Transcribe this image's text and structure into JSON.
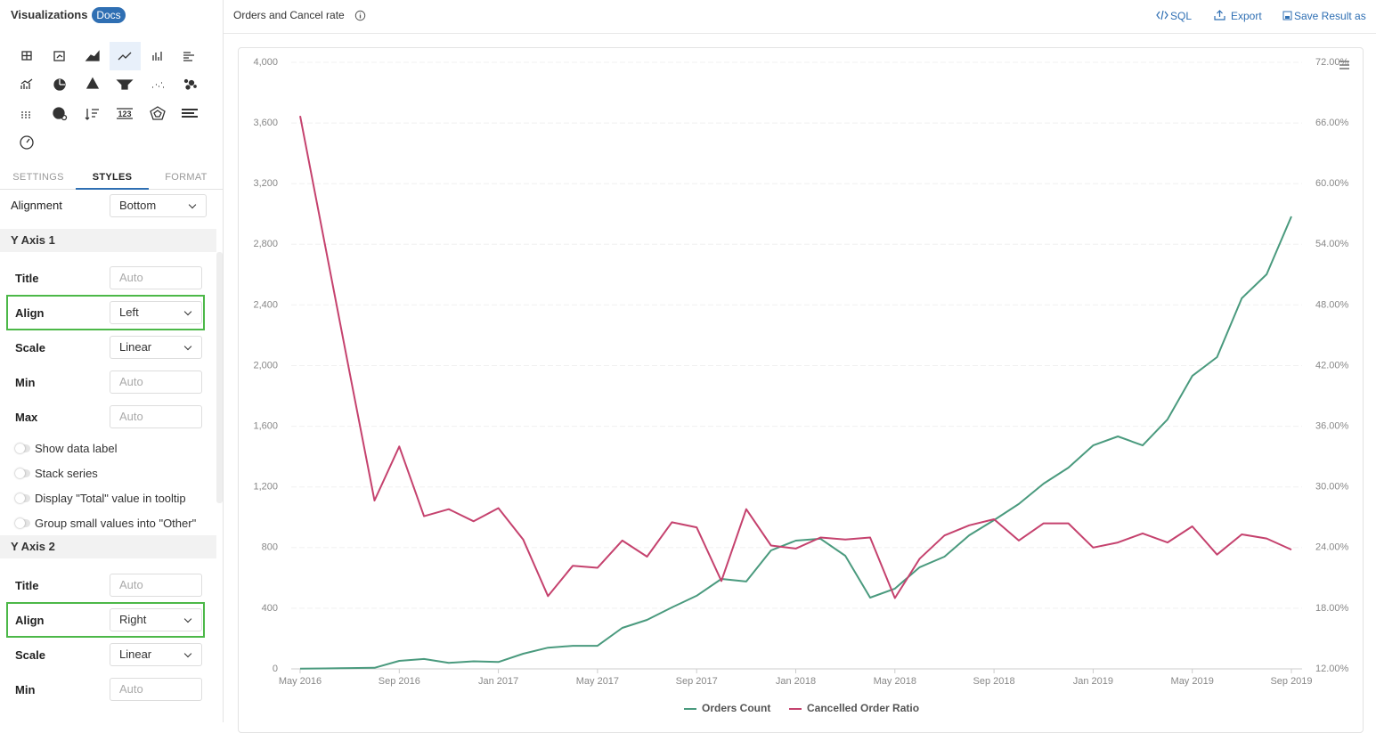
{
  "sidebar": {
    "title": "Visualizations",
    "badge": "Docs",
    "tabs": [
      "SETTINGS",
      "STYLES",
      "FORMAT"
    ],
    "alignment": {
      "label": "Alignment",
      "value": "Bottom"
    },
    "sections": [
      {
        "title": "Y Axis 1",
        "fields": [
          {
            "label": "Title",
            "value": "Auto"
          },
          {
            "label": "Align",
            "value": "Left"
          },
          {
            "label": "Scale",
            "value": "Linear"
          },
          {
            "label": "Min",
            "value": "Auto"
          },
          {
            "label": "Max",
            "value": "Auto"
          }
        ],
        "toggles": [
          "Show data label",
          "Stack series",
          "Display \"Total\" value in tooltip",
          "Group small values into \"Other\""
        ]
      },
      {
        "title": "Y Axis 2",
        "fields": [
          {
            "label": "Title",
            "value": "Auto"
          },
          {
            "label": "Align",
            "value": "Right"
          },
          {
            "label": "Scale",
            "value": "Linear"
          },
          {
            "label": "Min",
            "value": "Auto"
          }
        ]
      }
    ]
  },
  "header": {
    "title": "Orders and Cancel rate",
    "actions": [
      "SQL",
      "Export",
      "Save Result as"
    ]
  },
  "chart_data": {
    "type": "line",
    "categories": [
      "May 2016",
      null,
      null,
      null,
      "Sep 2016",
      null,
      null,
      null,
      "Jan 2017",
      null,
      null,
      null,
      "May 2017",
      null,
      null,
      null,
      "Sep 2017",
      null,
      null,
      null,
      "Jan 2018",
      null,
      null,
      null,
      "May 2018",
      null,
      null,
      null,
      "Sep 2018",
      null,
      null,
      null,
      "Jan 2019",
      null,
      null,
      null,
      "May 2019",
      null,
      null,
      null,
      "Sep 2019"
    ],
    "series": [
      {
        "name": "Orders Count",
        "color": "#4a9a7e",
        "values": [
          2,
          3,
          5,
          7,
          53,
          65,
          40,
          50,
          45,
          100,
          140,
          152,
          152,
          270,
          323,
          405,
          482,
          593,
          576,
          781,
          846,
          858,
          746,
          470,
          529,
          670,
          740,
          881,
          981,
          1087,
          1222,
          1327,
          1474,
          1533,
          1474,
          1645,
          1932,
          2056,
          2444,
          2602,
          2984
        ]
      },
      {
        "name": "Cancelled Order Ratio",
        "color": "#c5426e",
        "axis": "y2",
        "values": [
          66.7,
          54.0,
          41.3,
          28.65,
          34.0,
          27.1,
          27.8,
          26.6,
          27.9,
          24.8,
          19.2,
          22.2,
          22.0,
          24.7,
          23.1,
          26.5,
          26.0,
          20.7,
          27.8,
          24.2,
          23.9,
          25.0,
          24.8,
          25.0,
          19.0,
          22.9,
          25.2,
          26.2,
          26.8,
          24.7,
          26.4,
          26.4,
          24.0,
          24.5,
          25.4,
          24.5,
          26.1,
          23.3,
          25.3,
          24.9,
          23.8
        ]
      }
    ],
    "ylim": [
      0,
      4000
    ],
    "yticks": [
      0,
      400,
      800,
      {
        "value": 1200,
        "label": "1,200"
      },
      {
        "value": 1600,
        "label": "1,600"
      },
      {
        "value": 2000,
        "label": "2,000"
      },
      {
        "value": 2400,
        "label": "2,400"
      },
      {
        "value": 2800,
        "label": "2,800"
      },
      {
        "value": 3200,
        "label": "3,200"
      },
      {
        "value": 3600,
        "label": "3,600"
      },
      {
        "value": 4000,
        "label": "4,000"
      }
    ],
    "y2lim": [
      12,
      72
    ],
    "y2ticks": [
      {
        "value": 12,
        "label": "12.00%"
      },
      {
        "value": 18,
        "label": "18.00%"
      },
      {
        "value": 24,
        "label": "24.00%"
      },
      {
        "value": 30,
        "label": "30.00%"
      },
      {
        "value": 36,
        "label": "36.00%"
      },
      {
        "value": 42,
        "label": "42.00%"
      },
      {
        "value": 48,
        "label": "48.00%"
      },
      {
        "value": 54,
        "label": "54.00%"
      },
      {
        "value": 60,
        "label": "60.00%"
      },
      {
        "value": 66,
        "label": "66.00%"
      },
      {
        "value": 72,
        "label": "72.00%"
      }
    ],
    "grid": true,
    "legend": "bottom"
  }
}
